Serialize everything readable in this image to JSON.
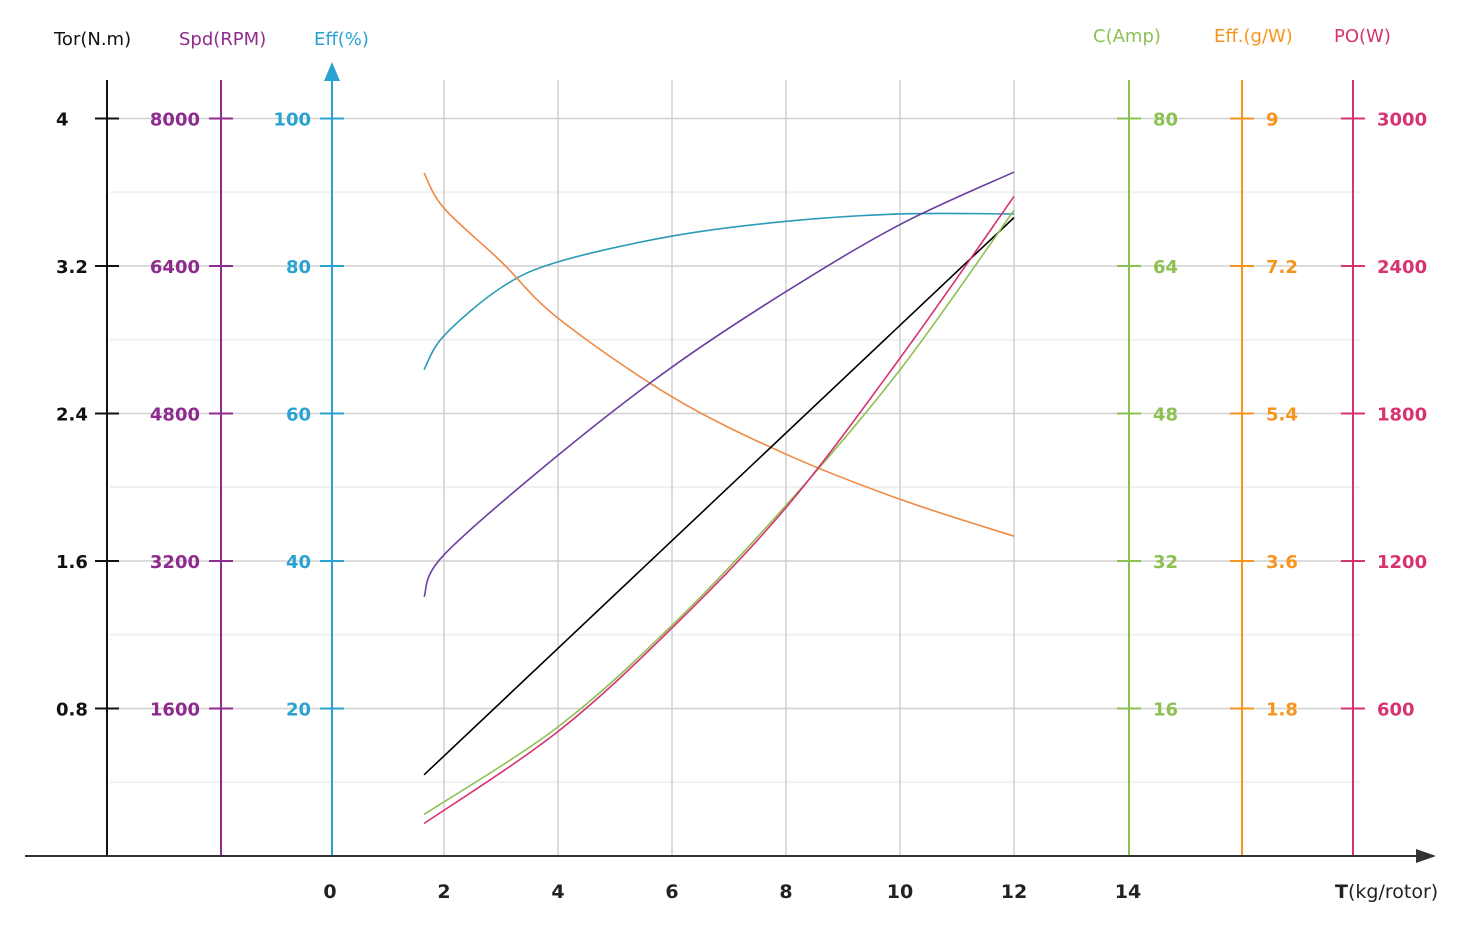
{
  "chart_data": {
    "type": "line",
    "xlabel_bold": "T",
    "xlabel_rest": "(kg/rotor)",
    "x_ticks": [
      "0",
      "2",
      "4",
      "6",
      "8",
      "10",
      "12",
      "14"
    ],
    "xlim": [
      0,
      14
    ],
    "grid": true,
    "axes": [
      {
        "id": "tor",
        "label": "Tor(N.m)",
        "color": "#111111",
        "side": "left",
        "ticks": [
          "0.8",
          "1.6",
          "2.4",
          "3.2",
          "4"
        ],
        "ylim": [
          0,
          4
        ]
      },
      {
        "id": "spd",
        "label": "Spd(RPM)",
        "color": "#8E2B8E",
        "side": "left",
        "ticks": [
          "1600",
          "3200",
          "4800",
          "6400",
          "8000"
        ],
        "ylim": [
          0,
          8000
        ]
      },
      {
        "id": "eff",
        "label": "Eff(%)",
        "color": "#2AA3D3",
        "side": "left",
        "ticks": [
          "20",
          "40",
          "60",
          "80",
          "100"
        ],
        "ylim": [
          0,
          100
        ]
      },
      {
        "id": "amp",
        "label": "C(Amp)",
        "color": "#8CC152",
        "side": "right",
        "ticks": [
          "16",
          "32",
          "48",
          "64",
          "80"
        ],
        "ylim": [
          0,
          80
        ]
      },
      {
        "id": "gw",
        "label": "Eff.(g/W)",
        "color": "#F7941D",
        "side": "right",
        "ticks": [
          "1.8",
          "3.6",
          "5.4",
          "7.2",
          "9"
        ],
        "ylim": [
          0,
          9
        ]
      },
      {
        "id": "po",
        "label": "PO(W)",
        "color": "#D63370",
        "side": "right",
        "ticks": [
          "600",
          "1200",
          "1800",
          "2400",
          "3000"
        ],
        "ylim": [
          0,
          3000
        ]
      }
    ],
    "series": [
      {
        "name": "Efficiency (%)",
        "axis": "eff",
        "color": "#2A9BB8",
        "x": [
          1.65,
          2,
          3,
          4,
          6,
          8,
          10,
          12
        ],
        "y": [
          65.9,
          70.5,
          77,
          80.5,
          84,
          86,
          87,
          87
        ]
      },
      {
        "name": "Efficiency (g/W)",
        "axis": "gw",
        "color": "#EE8A45",
        "x": [
          1.65,
          2,
          3,
          4,
          6,
          8,
          10,
          12
        ],
        "y": [
          8.33,
          7.9,
          7.25,
          6.56,
          5.6,
          4.9,
          4.35,
          3.9
        ]
      },
      {
        "name": "Speed (RPM)",
        "axis": "spd",
        "color": "#6A3FA0",
        "x": [
          1.65,
          2,
          4,
          6,
          8,
          10,
          12
        ],
        "y": [
          2810,
          3265,
          4344,
          5300,
          6118,
          6845,
          7414
        ]
      },
      {
        "name": "Torque (N.m)",
        "axis": "tor",
        "color": "#000000",
        "x": [
          1.65,
          12
        ],
        "y": [
          0.44,
          3.46
        ]
      },
      {
        "name": "Current (Amp)",
        "axis": "amp",
        "color": "#8CC152",
        "x": [
          1.65,
          4,
          6,
          8,
          10,
          12
        ],
        "y": [
          4.5,
          14,
          25,
          38,
          52.7,
          70
        ]
      },
      {
        "name": "Power (W)",
        "axis": "po",
        "color": "#D63370",
        "x": [
          1.65,
          4,
          6,
          8,
          10,
          12
        ],
        "y": [
          132,
          506,
          927,
          1416,
          2024,
          2681
        ]
      }
    ]
  }
}
